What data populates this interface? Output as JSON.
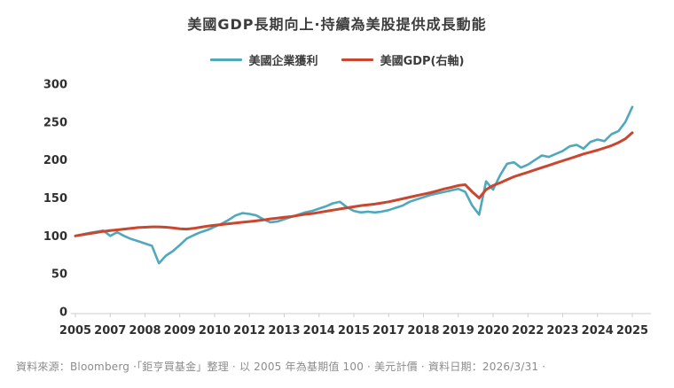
{
  "title": "美國GDP長期向上·持續為美股提供成長動能",
  "footer": "資料來源：Bloomberg ·「鉅亨買基金」整理 · 以 2005 年為基期值 100 · 美元計價 · 資料日期：2026/3/31 ·",
  "colors": {
    "profit_line": "#4FA8BC",
    "gdp_line": "#C9462F",
    "axis": "#cccccc",
    "axis_text": "#2f2f2f"
  },
  "legend": [
    {
      "label": "美國企業獲利",
      "color": "#4FA8BC"
    },
    {
      "label": "美國GDP(右軸)",
      "color": "#C9462F"
    }
  ],
  "chart_data": {
    "type": "line",
    "title": "美國GDP長期向上·持續為美股提供成長動能",
    "xlabel": "",
    "ylabel": "",
    "ylim": [
      0,
      300
    ],
    "y_ticks": [
      0,
      50,
      100,
      150,
      200,
      250,
      300
    ],
    "x_tick_labels": [
      "2005",
      "2007",
      "2008",
      "2009",
      "2010",
      "2012",
      "2013",
      "2014",
      "2015",
      "2017",
      "2018",
      "2019",
      "2020",
      "2022",
      "2023",
      "2024",
      "2025"
    ],
    "x_unit": "quarterly, 2005 = base 100",
    "grid": false,
    "legend_position": "top",
    "series": [
      {
        "name": "美國企業獲利",
        "color": "#4FA8BC",
        "values": [
          100,
          102,
          104,
          105.5,
          107,
          100,
          105,
          100,
          96,
          93,
          90,
          87,
          64,
          74,
          80,
          88,
          96.5,
          101,
          105,
          108,
          112,
          116,
          121,
          127,
          130,
          129,
          127,
          122,
          118,
          119,
          122,
          125,
          128,
          131,
          133,
          136,
          139,
          143,
          145,
          138,
          133,
          131,
          132,
          131,
          132,
          134,
          137,
          140,
          145,
          148,
          151,
          154,
          156,
          158,
          160,
          162,
          158,
          140,
          128,
          172,
          161,
          180,
          195,
          197,
          190,
          194,
          200,
          206,
          204,
          208,
          212,
          218,
          220,
          215,
          224,
          227,
          225,
          234,
          238,
          250,
          270
        ]
      },
      {
        "name": "美國GDP(右軸)",
        "color": "#C9462F",
        "values": [
          100,
          101.5,
          103,
          104.5,
          106,
          107,
          108,
          109,
          110,
          111,
          111.5,
          112,
          112,
          111.5,
          110.5,
          109.5,
          109,
          110,
          111.5,
          113,
          114,
          115,
          116,
          117,
          118,
          119,
          120,
          121,
          122.5,
          123.5,
          124.5,
          125.5,
          127,
          128.5,
          129.5,
          131,
          132.5,
          134,
          135.5,
          137,
          138.5,
          140,
          141,
          142,
          143.5,
          145,
          147,
          149,
          151,
          153,
          155,
          157,
          159.5,
          162,
          164,
          166.5,
          167.5,
          158,
          150,
          161,
          166.5,
          170,
          174,
          178,
          181,
          184,
          187,
          190,
          193,
          196,
          199,
          202,
          205,
          208,
          210.5,
          213,
          216,
          219,
          223,
          228,
          236
        ]
      }
    ]
  }
}
